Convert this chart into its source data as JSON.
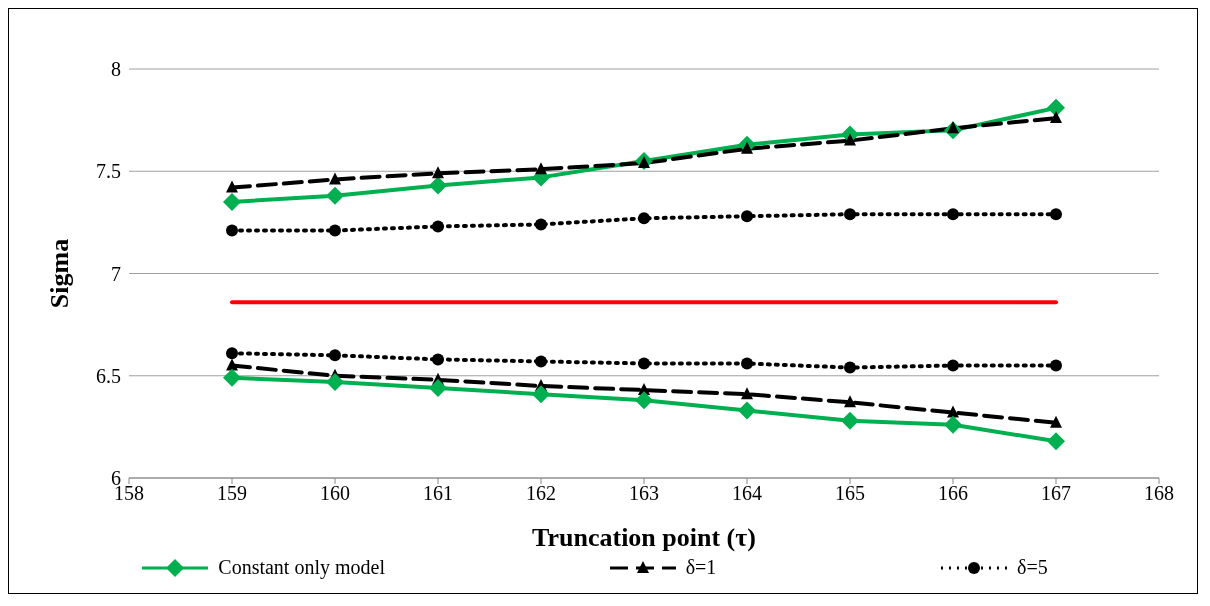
{
  "chart_data": {
    "type": "line",
    "xlabel": "Truncation point (τ)",
    "ylabel": "Sigma",
    "x": [
      159,
      160,
      161,
      162,
      163,
      164,
      165,
      166,
      167
    ],
    "xlim": [
      158,
      168
    ],
    "xticks": [
      158,
      159,
      160,
      161,
      162,
      163,
      164,
      165,
      166,
      167,
      168
    ],
    "ylim": [
      6,
      8
    ],
    "yticks": [
      6,
      6.5,
      7,
      7.5,
      8
    ],
    "grid": "y",
    "legend": "bottom",
    "series": [
      {
        "name": "Constant only model",
        "color": "#00b050",
        "marker": "diamond",
        "line_style": "solid",
        "values": [
          7.35,
          7.38,
          7.43,
          7.47,
          7.55,
          7.63,
          7.68,
          7.7,
          7.81
        ]
      },
      {
        "name": "δ=1",
        "color": "#000000",
        "marker": "triangle",
        "line_style": "dashed",
        "values": [
          7.42,
          7.46,
          7.49,
          7.51,
          7.54,
          7.61,
          7.65,
          7.71,
          7.76
        ]
      },
      {
        "name": "δ=5",
        "color": "#000000",
        "marker": "circle",
        "line_style": "dotted",
        "values": [
          7.21,
          7.21,
          7.23,
          7.24,
          7.27,
          7.28,
          7.29,
          7.29,
          7.29
        ]
      },
      {
        "color": "#ff0000",
        "marker": "none",
        "line_style": "solid",
        "values": [
          6.86,
          6.86,
          6.86,
          6.86,
          6.86,
          6.86,
          6.86,
          6.86,
          6.86
        ]
      },
      {
        "color": "#000000",
        "marker": "circle",
        "line_style": "dotted",
        "values": [
          6.61,
          6.6,
          6.58,
          6.57,
          6.56,
          6.56,
          6.54,
          6.55,
          6.55
        ]
      },
      {
        "color": "#000000",
        "marker": "triangle",
        "line_style": "dashed",
        "values": [
          6.55,
          6.5,
          6.48,
          6.45,
          6.43,
          6.41,
          6.37,
          6.32,
          6.27
        ]
      },
      {
        "color": "#00b050",
        "marker": "diamond",
        "line_style": "solid",
        "values": [
          6.49,
          6.47,
          6.44,
          6.41,
          6.38,
          6.33,
          6.28,
          6.26,
          6.18
        ]
      }
    ]
  }
}
